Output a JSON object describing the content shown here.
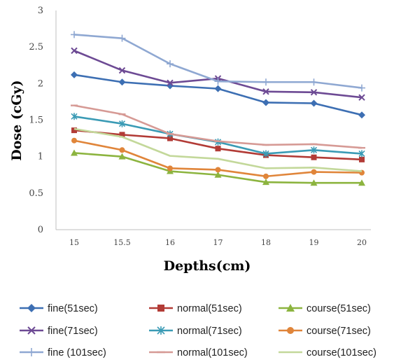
{
  "chart_data": {
    "type": "line",
    "title": "",
    "xlabel": "Depths(cm)",
    "ylabel": "Dose (cGy)",
    "ylim": [
      0,
      3
    ],
    "yticks": [
      "0",
      "0.5",
      "1",
      "1.5",
      "2",
      "2.5",
      "3"
    ],
    "categories": [
      "15",
      "15.5",
      "16",
      "17",
      "18",
      "19",
      "20"
    ],
    "grid": false,
    "legend_position": "bottom",
    "series": [
      {
        "name": "fine(51sec)",
        "color": "#3d6fb3",
        "marker": "diamond",
        "values": [
          2.12,
          2.02,
          1.97,
          1.93,
          1.74,
          1.73,
          1.57
        ]
      },
      {
        "name": "normal(51sec)",
        "color": "#b23b36",
        "marker": "square",
        "values": [
          1.36,
          1.3,
          1.25,
          1.11,
          1.02,
          0.99,
          0.96
        ]
      },
      {
        "name": "course(51sec)",
        "color": "#8cb43f",
        "marker": "triangle",
        "values": [
          1.05,
          1.0,
          0.8,
          0.75,
          0.65,
          0.64,
          0.64
        ]
      },
      {
        "name": "fine(71sec)",
        "color": "#6d4a94",
        "marker": "x",
        "values": [
          2.45,
          2.18,
          2.01,
          2.07,
          1.89,
          1.88,
          1.81
        ]
      },
      {
        "name": "normal(71sec)",
        "color": "#3b9bb5",
        "marker": "asterisk",
        "values": [
          1.55,
          1.45,
          1.31,
          1.2,
          1.04,
          1.09,
          1.04
        ]
      },
      {
        "name": "course(71sec)",
        "color": "#e0853a",
        "marker": "circle",
        "values": [
          1.22,
          1.09,
          0.84,
          0.82,
          0.73,
          0.79,
          0.78
        ]
      },
      {
        "name": "fine (101sec)",
        "color": "#8fa8d2",
        "marker": "plus",
        "values": [
          2.67,
          2.62,
          2.27,
          2.03,
          2.02,
          2.02,
          1.94
        ]
      },
      {
        "name": "normal(101sec)",
        "color": "#d69a95",
        "marker": "dash",
        "values": [
          1.7,
          1.58,
          1.31,
          1.21,
          1.16,
          1.17,
          1.12
        ]
      },
      {
        "name": "course(101sec)",
        "color": "#c3d89a",
        "marker": "none",
        "values": [
          1.38,
          1.27,
          1.01,
          0.97,
          0.84,
          0.85,
          0.8
        ]
      }
    ]
  }
}
